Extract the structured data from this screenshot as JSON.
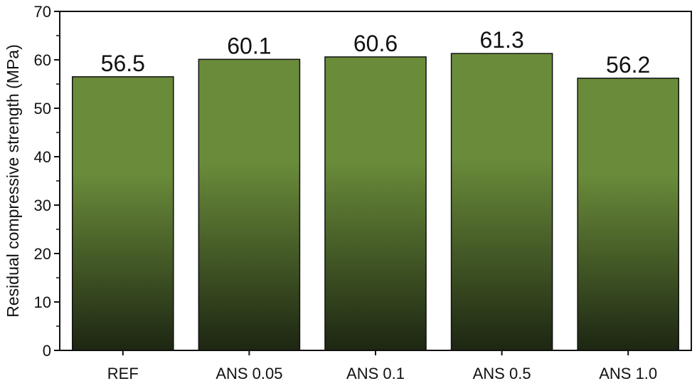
{
  "chart_data": {
    "type": "bar",
    "categories": [
      "REF",
      "ANS 0.05",
      "ANS 0.1",
      "ANS 0.5",
      "ANS 1.0"
    ],
    "values": [
      56.5,
      60.1,
      60.6,
      61.3,
      56.2
    ],
    "value_labels": [
      "56.5",
      "60.1",
      "60.6",
      "61.3",
      "56.2"
    ],
    "title": "",
    "xlabel": "",
    "ylabel": "Residual compressive strength (MPa)",
    "ylim": [
      0,
      70
    ],
    "yticks": [
      0,
      10,
      20,
      30,
      40,
      50,
      60,
      70
    ],
    "grid": false,
    "bar_colors": {
      "top": "#6a8c3a",
      "bottom": "#1d2612"
    }
  }
}
